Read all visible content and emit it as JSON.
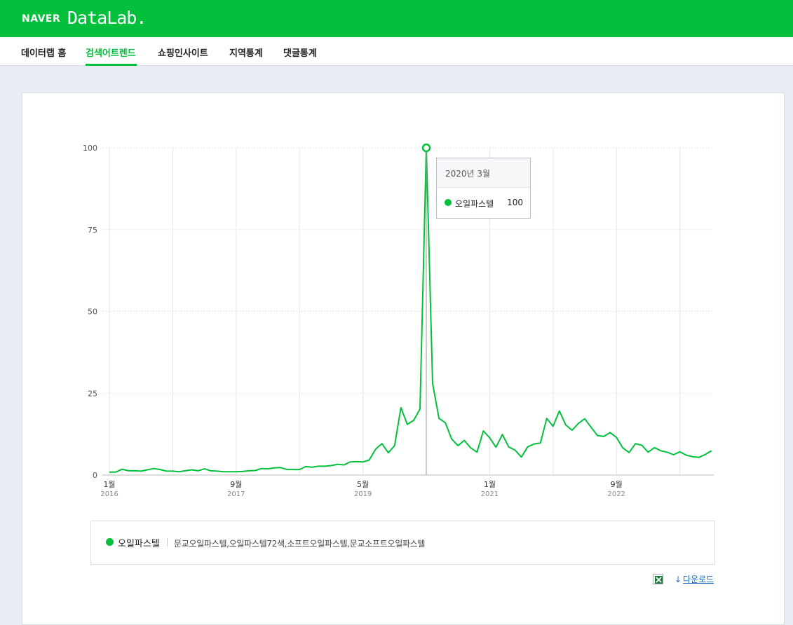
{
  "header": {
    "brand": "NAVER",
    "product": "DataLab."
  },
  "nav": {
    "items": [
      {
        "label": "데이터랩 홈"
      },
      {
        "label": "검색어트렌드"
      },
      {
        "label": "쇼핑인사이트"
      },
      {
        "label": "지역통계"
      },
      {
        "label": "댓글통계"
      }
    ],
    "active": "검색어트렌드"
  },
  "tooltip": {
    "period": "2020년 3월",
    "series": "오일파스텔",
    "value": "100"
  },
  "legend": {
    "name": "오일파스텔",
    "keywords": "문교오일파스텔,오일파스텔72색,소프트오일파스텔,문교소프트오일파스텔"
  },
  "download": {
    "label": "다운로드"
  },
  "colors": {
    "brand": "#03c03c",
    "line": "#03c03c",
    "grid": "#e6e6e6",
    "link": "#1a6ec3"
  },
  "chart_data": {
    "type": "line",
    "ylim": [
      0,
      100
    ],
    "yticks": [
      0,
      25,
      50,
      75,
      100
    ],
    "x_tick_labels": [
      {
        "month": "1월",
        "year": "2016",
        "index": 0
      },
      {
        "month": "9월",
        "year": "2017",
        "index": 20
      },
      {
        "month": "5월",
        "year": "2019",
        "index": 40
      },
      {
        "month": "1월",
        "year": "2021",
        "index": 60
      },
      {
        "month": "9월",
        "year": "2022",
        "index": 80
      }
    ],
    "x_start": "2016-01",
    "series": [
      {
        "name": "오일파스텔",
        "values": [
          0.9,
          0.9,
          1.8,
          1.3,
          1.3,
          1.2,
          1.6,
          2.0,
          1.7,
          1.2,
          1.2,
          1.0,
          1.3,
          1.6,
          1.3,
          1.9,
          1.3,
          1.2,
          1.0,
          1.0,
          1.0,
          1.1,
          1.3,
          1.4,
          2.0,
          1.9,
          2.2,
          2.3,
          1.7,
          1.7,
          1.7,
          2.6,
          2.4,
          2.7,
          2.7,
          2.9,
          3.3,
          3.1,
          4.0,
          4.1,
          4.0,
          4.6,
          7.9,
          9.6,
          6.8,
          9.0,
          20.6,
          15.5,
          16.7,
          20.2,
          100,
          28.0,
          17.3,
          16.0,
          11.0,
          9.0,
          10.6,
          8.3,
          7.0,
          13.5,
          11.4,
          8.5,
          12.4,
          8.6,
          7.6,
          5.5,
          8.6,
          9.5,
          9.8,
          17.3,
          14.9,
          19.6,
          15.3,
          13.7,
          15.8,
          17.2,
          14.6,
          12.1,
          11.8,
          13.0,
          11.5,
          8.3,
          6.9,
          9.6,
          9.1,
          7.0,
          8.4,
          7.4,
          7.0,
          6.2,
          7.1,
          6.1,
          5.6,
          5.4,
          6.3,
          7.4
        ]
      }
    ],
    "highlight": {
      "label": "2020년 3월",
      "index": 50,
      "value": 100
    }
  }
}
